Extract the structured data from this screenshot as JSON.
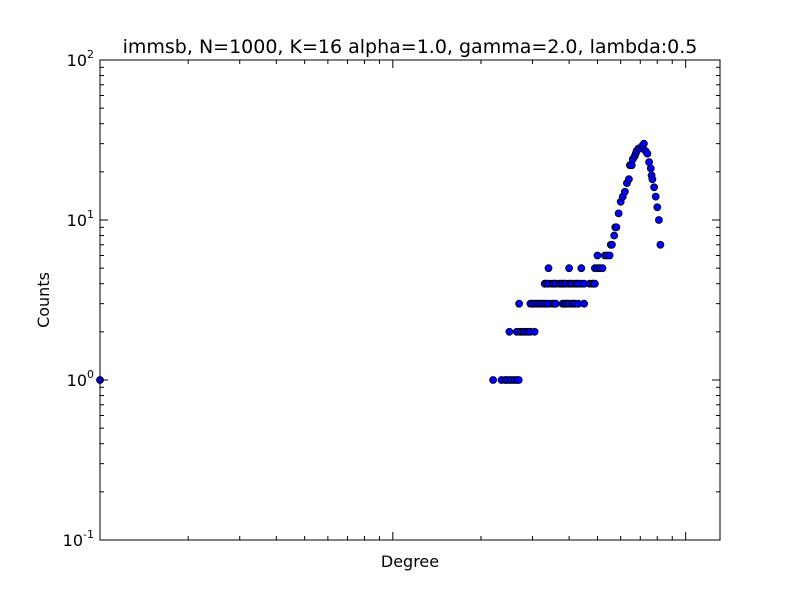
{
  "chart_data": {
    "type": "scatter",
    "title": "immsb, N=1000, K=16 alpha=1.0, gamma=2.0, lambda:0.5",
    "xlabel": "Degree",
    "ylabel": "Counts",
    "xscale": "log",
    "yscale": "log",
    "xlim": [
      1,
      131
    ],
    "ylim": [
      0.1,
      100
    ],
    "yticks": [
      {
        "base": "10",
        "exp": "-1"
      },
      {
        "base": "10",
        "exp": "0"
      },
      {
        "base": "10",
        "exp": "1"
      },
      {
        "base": "10",
        "exp": "2"
      }
    ],
    "grid": false,
    "marker_color": "#0000ff",
    "marker_edge_color": "#000000",
    "points": [
      [
        1,
        1
      ],
      [
        22,
        1
      ],
      [
        23.5,
        1
      ],
      [
        24.2,
        1
      ],
      [
        24.5,
        1
      ],
      [
        25,
        1
      ],
      [
        25.5,
        1
      ],
      [
        26,
        1
      ],
      [
        26.5,
        1
      ],
      [
        26.9,
        1
      ],
      [
        25,
        2
      ],
      [
        26.5,
        2
      ],
      [
        27.2,
        2
      ],
      [
        27.6,
        2
      ],
      [
        28,
        2
      ],
      [
        28.5,
        2
      ],
      [
        29,
        2
      ],
      [
        29.5,
        2
      ],
      [
        30.5,
        2
      ],
      [
        27,
        3
      ],
      [
        29.5,
        3
      ],
      [
        30,
        3
      ],
      [
        30.5,
        3
      ],
      [
        31,
        3
      ],
      [
        31.5,
        3
      ],
      [
        32,
        3
      ],
      [
        32.5,
        3
      ],
      [
        33,
        3
      ],
      [
        33.5,
        3
      ],
      [
        34,
        3
      ],
      [
        35,
        3
      ],
      [
        35.5,
        3
      ],
      [
        36,
        3
      ],
      [
        38,
        3
      ],
      [
        38.5,
        3
      ],
      [
        39,
        3
      ],
      [
        39.5,
        3
      ],
      [
        40,
        3
      ],
      [
        41,
        3
      ],
      [
        41.5,
        3
      ],
      [
        42,
        3
      ],
      [
        43,
        3
      ],
      [
        45,
        3
      ],
      [
        33,
        4
      ],
      [
        33.5,
        4
      ],
      [
        34,
        4
      ],
      [
        35,
        4
      ],
      [
        35.5,
        4
      ],
      [
        36,
        4
      ],
      [
        37,
        4
      ],
      [
        37.5,
        4
      ],
      [
        38,
        4
      ],
      [
        38.5,
        4
      ],
      [
        39,
        4
      ],
      [
        40,
        4
      ],
      [
        40.5,
        4
      ],
      [
        41,
        4
      ],
      [
        42,
        4
      ],
      [
        42.5,
        4
      ],
      [
        43,
        4
      ],
      [
        44,
        4
      ],
      [
        45,
        4
      ],
      [
        47,
        4
      ],
      [
        48,
        4
      ],
      [
        48.5,
        4
      ],
      [
        49,
        4
      ],
      [
        34,
        5
      ],
      [
        40,
        5
      ],
      [
        44,
        5
      ],
      [
        49,
        5
      ],
      [
        50,
        5
      ],
      [
        51,
        5
      ],
      [
        52,
        5
      ],
      [
        50,
        6
      ],
      [
        53,
        6
      ],
      [
        54,
        6
      ],
      [
        55,
        6
      ],
      [
        55.5,
        7
      ],
      [
        56,
        7
      ],
      [
        57,
        8
      ],
      [
        57.5,
        9
      ],
      [
        58,
        9
      ],
      [
        59,
        11
      ],
      [
        60,
        13
      ],
      [
        61,
        14
      ],
      [
        62,
        15
      ],
      [
        63,
        17
      ],
      [
        64,
        18
      ],
      [
        64.5,
        22
      ],
      [
        65.5,
        22
      ],
      [
        66,
        24
      ],
      [
        67,
        25
      ],
      [
        67.5,
        26
      ],
      [
        68,
        27
      ],
      [
        69,
        28
      ],
      [
        70,
        28
      ],
      [
        71,
        29
      ],
      [
        72,
        30
      ],
      [
        73,
        27
      ],
      [
        74,
        26
      ],
      [
        75,
        23
      ],
      [
        76,
        21
      ],
      [
        76.5,
        19
      ],
      [
        77,
        18
      ],
      [
        78,
        16
      ],
      [
        79,
        14
      ],
      [
        80,
        12
      ],
      [
        81,
        10
      ],
      [
        82,
        7
      ]
    ]
  }
}
